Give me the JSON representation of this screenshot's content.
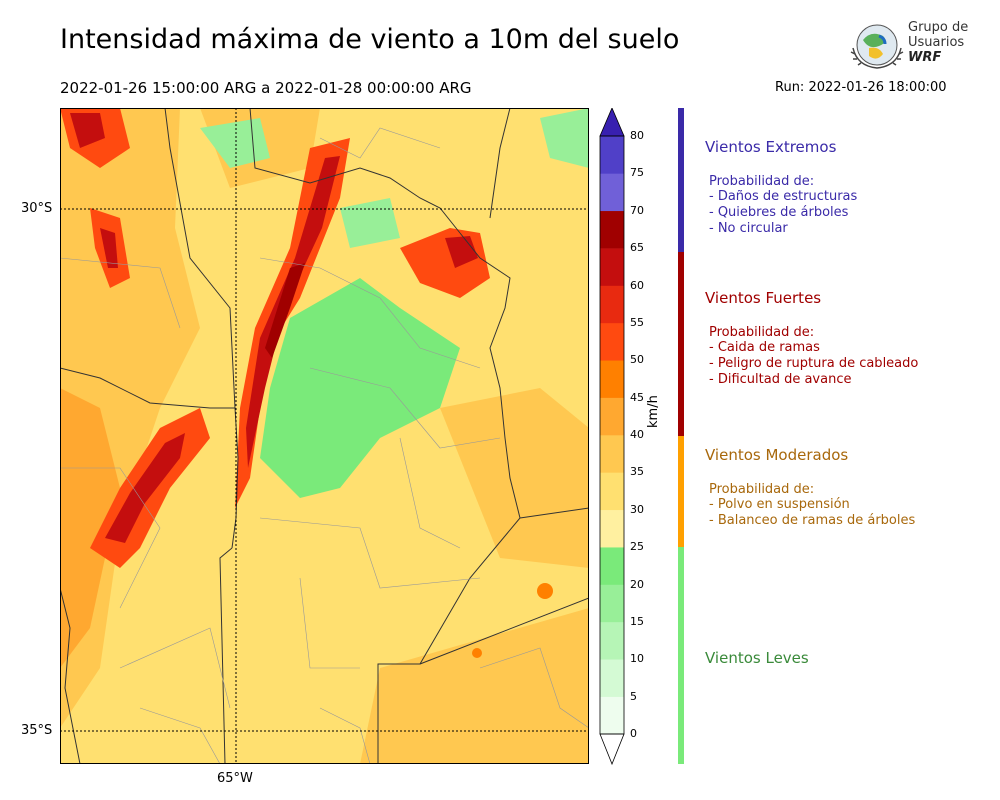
{
  "title": "Intensidad máxima de viento a 10m del suelo",
  "subtitle": "2022-01-26 15:00:00 ARG  a  2022-01-28 00:00:00 ARG",
  "run": "Run: 2022-01-26 18:00:00",
  "logo": {
    "line1": "Grupo de",
    "line2": "Usuarios",
    "line3": "WRF"
  },
  "map": {
    "lat_labels": [
      "30°S",
      "35°S"
    ],
    "lon_labels": [
      "65°W"
    ]
  },
  "colorbar": {
    "unit": "km/h",
    "ticks": [
      "0",
      "5",
      "10",
      "15",
      "20",
      "25",
      "30",
      "35",
      "40",
      "45",
      "50",
      "55",
      "60",
      "65",
      "70",
      "75",
      "80"
    ],
    "colors": [
      "#eefdee",
      "#d4fad4",
      "#b6f5b6",
      "#98ef98",
      "#7aea7a",
      "#fff0a0",
      "#ffe070",
      "#ffc850",
      "#ffa830",
      "#ff8000",
      "#ff4a10",
      "#e82a10",
      "#c40e0e",
      "#a00000",
      "#7060d8",
      "#5040c8",
      "#3820b0"
    ]
  },
  "categories": [
    {
      "title": "Vientos Extremos",
      "color": "#3a2aa8",
      "prob": "Probabilidad de:",
      "items": [
        "- Daños de estructuras",
        "- Quiebres de árboles",
        "- No circular"
      ]
    },
    {
      "title": "Vientos Fuertes",
      "color": "#a00000",
      "prob": "Probabilidad de:",
      "items": [
        "- Caida de ramas",
        "- Peligro de ruptura de cableado",
        "- Dificultad de avance"
      ]
    },
    {
      "title": "Vientos Moderados",
      "color": "#a8680c",
      "prob": "Probabilidad de:",
      "items": [
        "- Polvo en suspensión",
        "- Balanceo de ramas de árboles"
      ]
    },
    {
      "title": "Vientos Leves",
      "color": "#3a8a3a",
      "prob": "",
      "items": []
    }
  ]
}
